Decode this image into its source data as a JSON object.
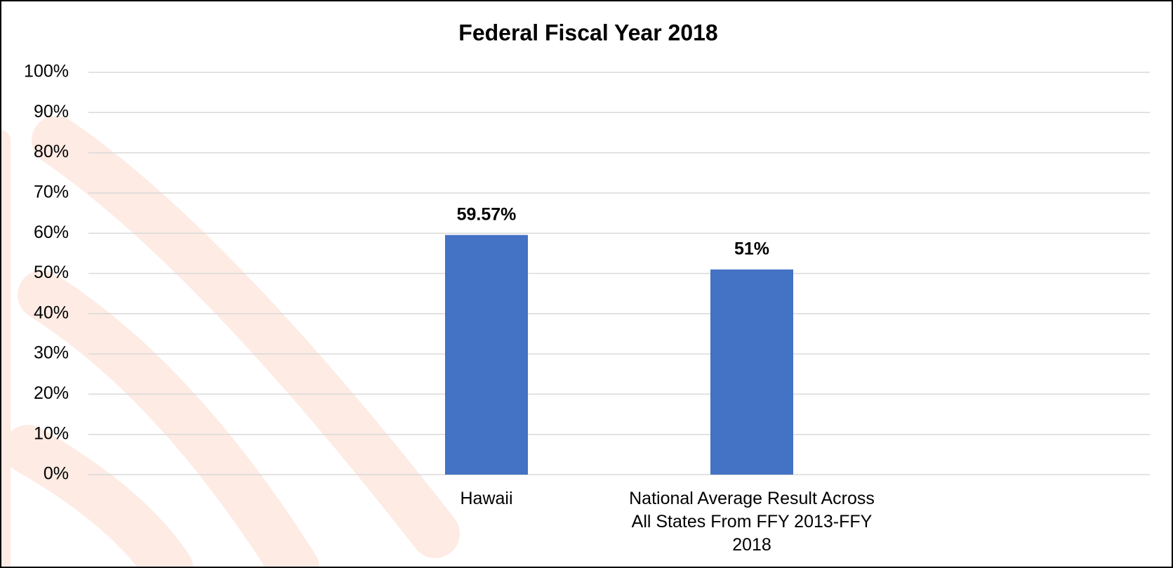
{
  "chart_data": {
    "type": "bar",
    "title": "Federal Fiscal Year 2018",
    "categories": [
      "Hawaii",
      "National Average Result Across All States From FFY 2013-FFY 2018"
    ],
    "values": [
      59.57,
      51
    ],
    "value_labels": [
      "59.57%",
      "51%"
    ],
    "color": "#4472c4",
    "ylim": [
      0,
      100
    ],
    "yticks": [
      {
        "value": 0,
        "label": "0%"
      },
      {
        "value": 10,
        "label": "10%"
      },
      {
        "value": 20,
        "label": "20%"
      },
      {
        "value": 30,
        "label": "30%"
      },
      {
        "value": 40,
        "label": "40%"
      },
      {
        "value": 50,
        "label": "50%"
      },
      {
        "value": 60,
        "label": "60%"
      },
      {
        "value": 70,
        "label": "70%"
      },
      {
        "value": 80,
        "label": "80%"
      },
      {
        "value": 90,
        "label": "90%"
      },
      {
        "value": 100,
        "label": "100%"
      }
    ],
    "grid": true
  }
}
